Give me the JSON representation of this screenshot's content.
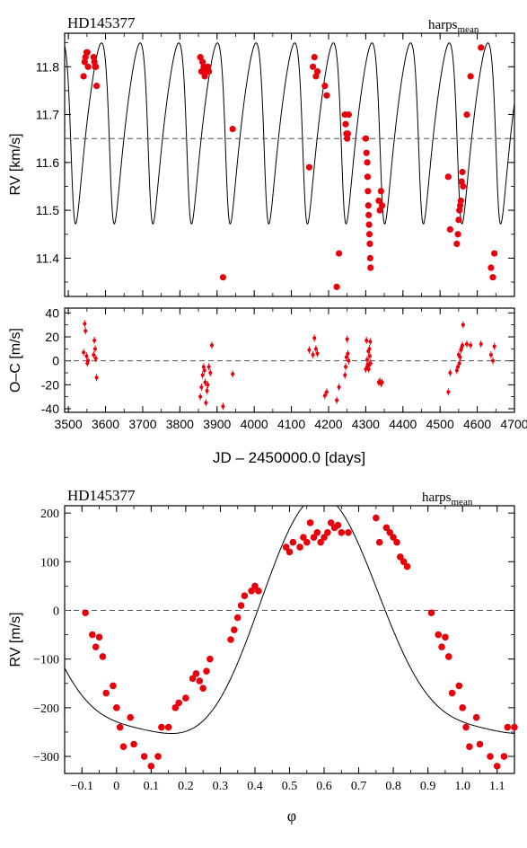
{
  "chart_data": [
    {
      "type": "scatter",
      "title": "HD145377",
      "instrument": "harps",
      "instrument_sub": "mean",
      "xlabel": "",
      "ylabel": "RV [km/s]",
      "xlim": [
        3490,
        4700
      ],
      "ylim": [
        11.32,
        11.87
      ],
      "yticks": [
        11.4,
        11.5,
        11.6,
        11.7,
        11.8
      ],
      "mean_line": 11.65,
      "model": {
        "period": 103.95,
        "t0": 3510,
        "mean": 11.65,
        "amplitude": 0.2425,
        "ecc": 0.31,
        "omega_deg": 120
      },
      "series": [
        {
          "x": [
            3541,
            3544,
            3546,
            3549,
            3551,
            3553,
            3568,
            3570,
            3572,
            3574,
            3576
          ],
          "y": [
            11.78,
            11.81,
            11.82,
            11.83,
            11.83,
            11.8,
            11.82,
            11.81,
            11.8,
            11.8,
            11.76
          ]
        },
        {
          "x": [
            3855,
            3858,
            3861,
            3864,
            3867,
            3870,
            3875,
            3878
          ],
          "y": [
            11.82,
            11.79,
            11.81,
            11.8,
            11.78,
            11.79,
            11.8,
            11.79
          ]
        },
        {
          "x": [
            3916,
            3942
          ],
          "y": [
            11.36,
            11.67
          ]
        },
        {
          "x": [
            4148,
            4158,
            4162,
            4166,
            4170,
            4190,
            4195
          ],
          "y": [
            11.59,
            11.8,
            11.82,
            11.78,
            11.79,
            11.76,
            11.74
          ]
        },
        {
          "x": [
            4222,
            4228
          ],
          "y": [
            11.34,
            11.41
          ]
        },
        {
          "x": [
            4244,
            4246,
            4248,
            4250,
            4252,
            4254
          ],
          "y": [
            11.7,
            11.68,
            11.66,
            11.65,
            11.66,
            11.7
          ]
        },
        {
          "x": [
            4300,
            4302,
            4304,
            4305,
            4306,
            4307,
            4308,
            4309,
            4310,
            4311,
            4312,
            4313
          ],
          "y": [
            11.65,
            11.62,
            11.6,
            11.57,
            11.54,
            11.51,
            11.49,
            11.47,
            11.45,
            11.43,
            11.4,
            11.38
          ]
        },
        {
          "x": [
            4335,
            4338,
            4341,
            4344
          ],
          "y": [
            11.52,
            11.5,
            11.54,
            11.51
          ]
        },
        {
          "x": [
            4522,
            4527
          ],
          "y": [
            11.57,
            11.46
          ]
        },
        {
          "x": [
            4545,
            4548,
            4550,
            4552,
            4554,
            4556,
            4558,
            4560,
            4562
          ],
          "y": [
            11.43,
            11.45,
            11.48,
            11.5,
            11.51,
            11.52,
            11.56,
            11.58,
            11.55
          ]
        },
        {
          "x": [
            4572,
            4582,
            4610,
            4637,
            4642,
            4646
          ],
          "y": [
            11.7,
            11.78,
            11.84,
            11.38,
            11.36,
            11.41
          ]
        }
      ]
    },
    {
      "type": "scatter",
      "title": "",
      "xlabel": "JD – 2450000.0 [days]",
      "ylabel": "O–C [m/s]",
      "xlim": [
        3490,
        4700
      ],
      "ylim": [
        -43,
        44
      ],
      "xticks": [
        3500,
        3600,
        3700,
        3800,
        3900,
        4000,
        4100,
        4200,
        4300,
        4400,
        4500,
        4600,
        4700
      ],
      "yticks": [
        -40,
        -20,
        0,
        20,
        40
      ],
      "zero_line": 0,
      "x": [
        3541,
        3544,
        3546,
        3549,
        3551,
        3553,
        3568,
        3570,
        3572,
        3574,
        3576,
        3855,
        3858,
        3861,
        3864,
        3866,
        3868,
        3870,
        3873,
        3875,
        3878,
        3882,
        3886,
        3916,
        3942,
        4148,
        4158,
        4162,
        4166,
        4170,
        4190,
        4195,
        4222,
        4228,
        4244,
        4246,
        4248,
        4250,
        4252,
        4254,
        4300,
        4302,
        4304,
        4305,
        4306,
        4307,
        4308,
        4309,
        4310,
        4311,
        4312,
        4313,
        4335,
        4338,
        4341,
        4344,
        4522,
        4527,
        4545,
        4548,
        4550,
        4552,
        4554,
        4556,
        4558,
        4560,
        4562,
        4572,
        4582,
        4610,
        4637,
        4642,
        4646
      ],
      "y": [
        7,
        31,
        25,
        4,
        -2,
        0,
        5,
        17,
        10,
        2,
        -14,
        -30,
        -22,
        -12,
        -5,
        -8,
        -18,
        -35,
        -25,
        -20,
        -5,
        -10,
        13,
        -38,
        -11,
        9,
        5,
        19,
        10,
        6,
        -29,
        -26,
        -33,
        -22,
        -12,
        -5,
        3,
        18,
        6,
        0,
        -7,
        17,
        1,
        -3,
        -5,
        8,
        -7,
        -3,
        10,
        4,
        16,
        -2,
        -18,
        -17,
        -19,
        -18,
        -26,
        -10,
        -8,
        -5,
        5,
        -2,
        3,
        9,
        11,
        13,
        30,
        14,
        13,
        14,
        5,
        0,
        12
      ]
    },
    {
      "type": "scatter",
      "title": "HD145377",
      "instrument": "harps",
      "instrument_sub": "mean",
      "xlabel": "φ",
      "ylabel": "RV [m/s]",
      "xlim": [
        -0.15,
        1.15
      ],
      "ylim": [
        -335,
        215
      ],
      "xticks": [
        -0.1,
        0,
        0.1,
        0.2,
        0.3,
        0.4,
        0.5,
        0.6,
        0.7,
        0.8,
        0.9,
        1.0,
        1.1
      ],
      "ytick_values": [
        -300,
        -200,
        -100,
        0,
        100,
        200
      ],
      "zero_line": 0,
      "x": [
        -0.09,
        -0.07,
        -0.06,
        -0.05,
        -0.04,
        -0.03,
        -0.01,
        0.0,
        0.01,
        0.02,
        0.04,
        0.05,
        0.08,
        0.1,
        0.12,
        0.13,
        0.15,
        0.17,
        0.18,
        0.2,
        0.22,
        0.23,
        0.24,
        0.25,
        0.26,
        0.27,
        0.33,
        0.34,
        0.35,
        0.36,
        0.37,
        0.39,
        0.4,
        0.41,
        0.49,
        0.5,
        0.51,
        0.53,
        0.54,
        0.55,
        0.56,
        0.57,
        0.58,
        0.59,
        0.6,
        0.61,
        0.62,
        0.63,
        0.64,
        0.65,
        0.67,
        0.75,
        0.76,
        0.78,
        0.79,
        0.8,
        0.81,
        0.82,
        0.83,
        0.84,
        0.91,
        0.93,
        0.94,
        0.95,
        0.96,
        0.97,
        0.99,
        1.0,
        1.01,
        1.02,
        1.04,
        1.05,
        1.08,
        1.1,
        1.12,
        1.13,
        1.15
      ],
      "y": [
        -5,
        -50,
        -75,
        -55,
        -95,
        -170,
        -155,
        -200,
        -240,
        -280,
        -220,
        -275,
        -300,
        -320,
        -300,
        -240,
        -240,
        -200,
        -190,
        -180,
        -140,
        -130,
        -145,
        -160,
        -125,
        -100,
        -60,
        -40,
        -15,
        10,
        30,
        40,
        50,
        40,
        130,
        120,
        140,
        130,
        150,
        140,
        180,
        150,
        160,
        140,
        150,
        160,
        180,
        170,
        175,
        160,
        160,
        190,
        140,
        170,
        160,
        150,
        140,
        110,
        100,
        90,
        -5,
        -50,
        -75,
        -55,
        -95,
        -170,
        -155,
        -200,
        -240,
        -280,
        -220,
        -275,
        -300,
        -320,
        -300,
        -240,
        -240
      ],
      "model": {
        "mean": -55,
        "amplitude": 242.5,
        "ecc": 0.31,
        "omega_deg": 120,
        "phase_offset": 0.0
      }
    }
  ]
}
